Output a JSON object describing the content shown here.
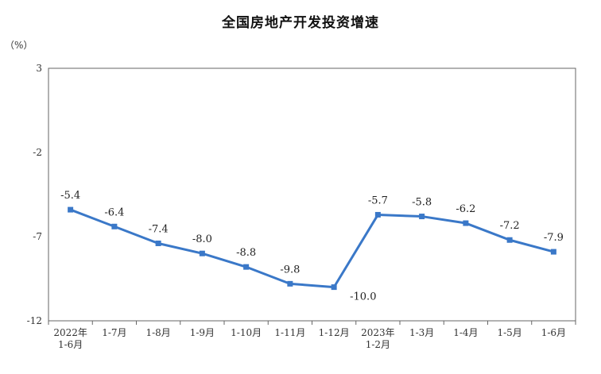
{
  "chart_data": {
    "type": "line",
    "title": "全国房地产开发投资增速",
    "ylabel": "（%）",
    "xlabel": "",
    "ylim": [
      -12,
      3
    ],
    "yticks": [
      3,
      -2,
      -7,
      -12
    ],
    "grid": false,
    "categories": [
      [
        "2022年",
        "1-6月"
      ],
      [
        "1-7月"
      ],
      [
        "1-8月"
      ],
      [
        "1-9月"
      ],
      [
        "1-10月"
      ],
      [
        "1-11月"
      ],
      [
        "1-12月"
      ],
      [
        "2023年",
        "1-2月"
      ],
      [
        "1-3月"
      ],
      [
        "1-4月"
      ],
      [
        "1-5月"
      ],
      [
        "1-6月"
      ]
    ],
    "series": [
      {
        "values": [
          -5.4,
          -6.4,
          -7.4,
          -8.0,
          -8.8,
          -9.8,
          -10.0,
          -5.7,
          -5.8,
          -6.2,
          -7.2,
          -7.9
        ],
        "labels": [
          "-5.4",
          "-6.4",
          "-7.4",
          "-8.0",
          "-8.8",
          "-9.8",
          "-10.0",
          "-5.7",
          "-5.8",
          "-6.2",
          "-7.2",
          "-7.9"
        ],
        "color": "#3a78c8"
      }
    ]
  }
}
